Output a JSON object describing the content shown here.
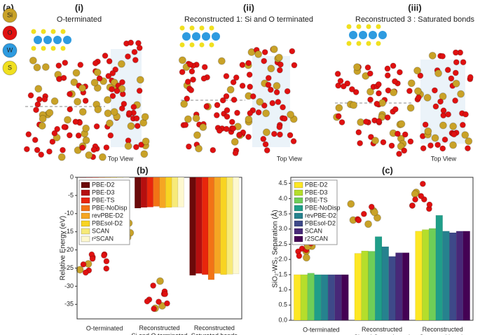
{
  "figure": {
    "panel_label": "(a)",
    "atom_legend": [
      "Si",
      "O",
      "W",
      "S"
    ],
    "structures": [
      {
        "numeral": "(i)",
        "title": "O-terminated",
        "view": "Top View"
      },
      {
        "numeral": "(ii)",
        "title": "Reconstructed 1: Si and O terminated",
        "view": "Top View"
      },
      {
        "numeral": "(iii)",
        "title": "Reconstructed 3 : Saturated bonds",
        "view": "Top View"
      }
    ]
  },
  "chart_data": [
    {
      "type": "bar",
      "panel_label": "(b)",
      "ylabel": "Relative Energy (eV)",
      "categories": [
        "O-terminated",
        "Reconstructed\nSi and O terminated",
        "Reconstructed\nSaturated bonds"
      ],
      "ylim": [
        -39,
        0
      ],
      "yticks": [
        0,
        -5,
        -10,
        -15,
        -20,
        -25,
        -30,
        -35
      ],
      "legend": "upper left",
      "series": [
        {
          "name": "PBE-D2",
          "color": "#6b0a0a",
          "values": [
            0,
            -8.5,
            -27
          ]
        },
        {
          "name": "PBE-D3",
          "color": "#b50f0f",
          "values": [
            0,
            -8.3,
            -26.5
          ]
        },
        {
          "name": "PBE-TS",
          "color": "#e8250c",
          "values": [
            0,
            -8.2,
            -26.8
          ]
        },
        {
          "name": "PBE-NoDisp",
          "color": "#f27316",
          "values": [
            0,
            -8,
            -28.2
          ]
        },
        {
          "name": "revPBE-D2",
          "color": "#f5a623",
          "values": [
            0,
            -8.4,
            -26.5
          ]
        },
        {
          "name": "PBEsol-D2",
          "color": "#f8d422",
          "values": [
            0,
            -8.3,
            -26.8
          ]
        },
        {
          "name": "SCAN",
          "color": "#f7ea78",
          "values": [
            0,
            -8.2,
            -26.7
          ]
        },
        {
          "name": "r²SCAN",
          "color": "#fdf8cf",
          "values": [
            0,
            -8.2,
            -26.6
          ]
        }
      ]
    },
    {
      "type": "bar",
      "panel_label": "(c)",
      "ylabel": "SiO₂-WS₂ Separation (Å)",
      "categories": [
        "O-terminated",
        "Reconstructed\nSi and O terminated",
        "Reconstructed\nSaturated bonds"
      ],
      "ylim": [
        0,
        4.7
      ],
      "yticks": [
        {
          "value": 0,
          "label": "0.0"
        },
        {
          "value": 0.5,
          "label": "0.5"
        },
        {
          "value": 1,
          "label": "1.0"
        },
        {
          "value": 1.5,
          "label": "1.5"
        },
        {
          "value": 2,
          "label": "2.0"
        },
        {
          "value": 2.5,
          "label": "2.5"
        },
        {
          "value": 3,
          "label": "3.0"
        },
        {
          "value": 3.5,
          "label": "3.5"
        },
        {
          "value": 4,
          "label": "4.0"
        },
        {
          "value": 4.5,
          "label": "4.5"
        }
      ],
      "legend": "upper left",
      "series": [
        {
          "name": "PBE-D2",
          "color": "#fde725",
          "values": [
            1.5,
            2.2,
            2.93
          ]
        },
        {
          "name": "PBE-D3",
          "color": "#b5de2b",
          "values": [
            1.5,
            2.28,
            2.98
          ]
        },
        {
          "name": "PBE-TS",
          "color": "#6ece58",
          "values": [
            1.55,
            2.27,
            3.02
          ]
        },
        {
          "name": "PBE-NoDisp",
          "color": "#1f9e89",
          "values": [
            1.5,
            2.75,
            3.45
          ]
        },
        {
          "name": "revPBE-D2",
          "color": "#26828e",
          "values": [
            1.5,
            2.42,
            2.93
          ]
        },
        {
          "name": "PBEsol-D2",
          "color": "#3e4989",
          "values": [
            1.5,
            2.1,
            2.88
          ]
        },
        {
          "name": "SCAN",
          "color": "#482878",
          "values": [
            1.5,
            2.22,
            2.93
          ]
        },
        {
          "name": "r2SCAN",
          "color": "#440154",
          "values": [
            1.5,
            2.22,
            2.93
          ]
        }
      ]
    }
  ]
}
